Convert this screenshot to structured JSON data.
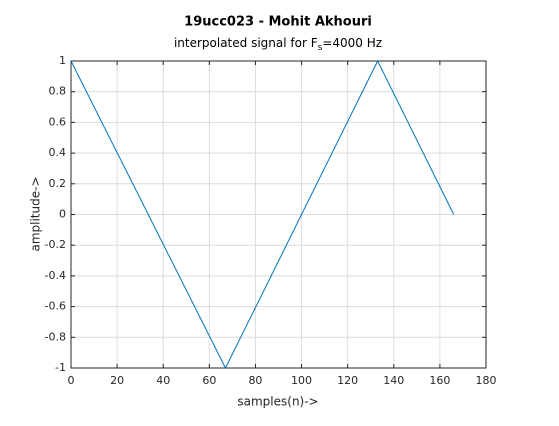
{
  "chart_data": {
    "type": "line",
    "title": "19ucc023 - Mohit Akhouri",
    "subtitle": [
      "interpolated signal for F",
      "s",
      "=4000 Hz"
    ],
    "xlabel": "samples(n)->",
    "ylabel": "amplitude->",
    "x": [
      0,
      67,
      133,
      166
    ],
    "values": [
      1,
      -1,
      1,
      0
    ],
    "color": "#0072bd",
    "xlim": [
      0,
      180
    ],
    "xticks": [
      0,
      20,
      40,
      60,
      80,
      100,
      120,
      140,
      160,
      180
    ],
    "ylim": [
      -1,
      1
    ],
    "yticks": [
      -1,
      -0.8,
      -0.6,
      -0.4,
      -0.2,
      0,
      0.2,
      0.4,
      0.6,
      0.8,
      1
    ],
    "grid": true
  }
}
